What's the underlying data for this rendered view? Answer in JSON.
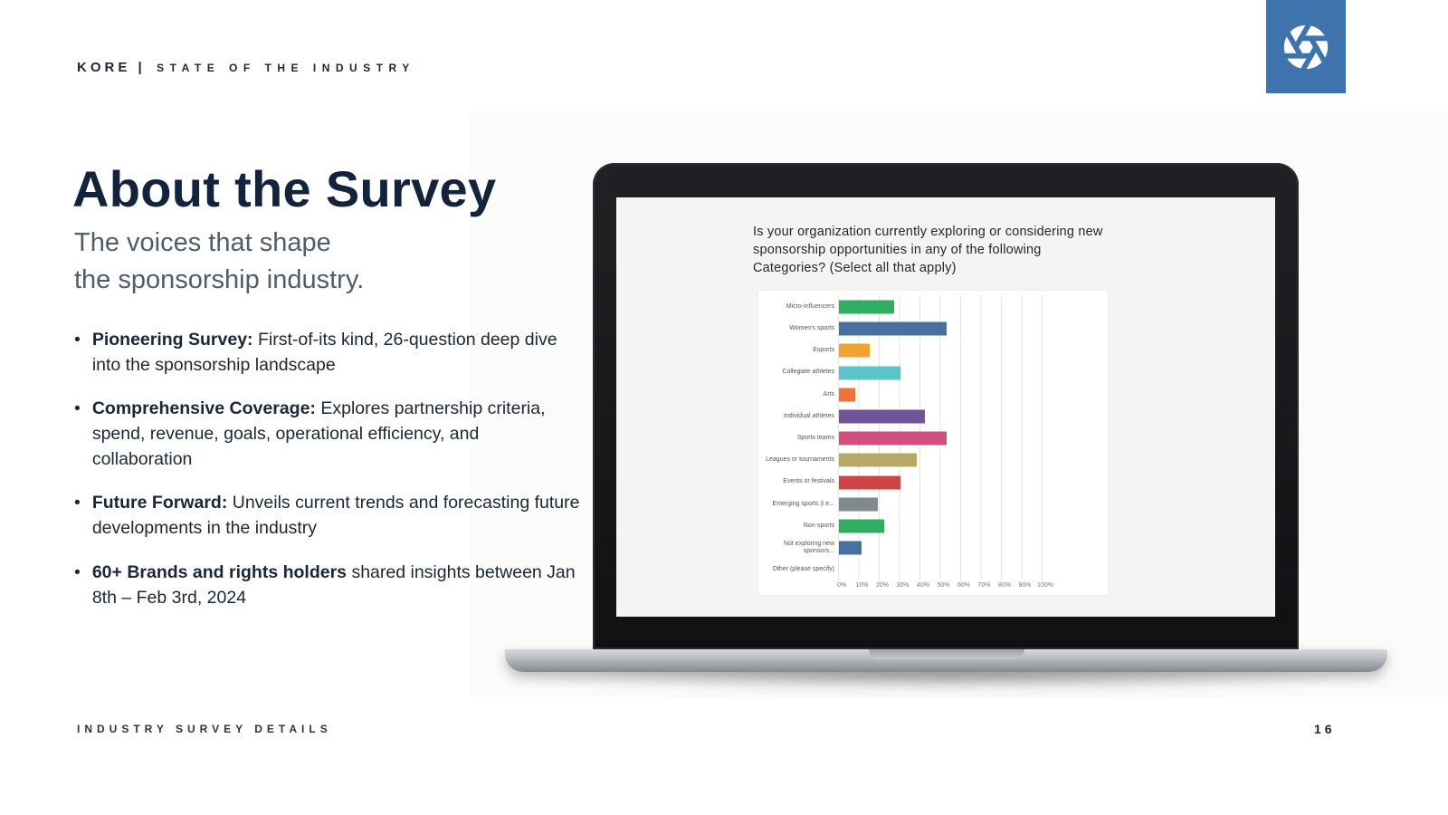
{
  "header": {
    "brand": "KORE |",
    "brand_suffix": "STATE OF THE INDUSTRY",
    "logo_icon": "aperture-shutter-icon",
    "logo_color": "#3e74ad"
  },
  "title": "About the Survey",
  "subtitle_line1": "The voices that shape",
  "subtitle_line2": "the sponsorship industry.",
  "bullets": [
    {
      "bold": "Pioneering Survey:",
      "text": "First-of-its kind, 26-question deep dive into the sponsorship landscape"
    },
    {
      "bold": "Comprehensive Coverage:",
      "text": "Explores partnership criteria, spend, revenue, goals, operational efficiency, and collaboration"
    },
    {
      "bold": "Future Forward:",
      "text": "Unveils current trends and forecasting future developments in the industry"
    },
    {
      "bold": "60+ Brands and rights holders",
      "text": "shared insights between Jan 8th – Feb 3rd, 2024"
    }
  ],
  "laptop_screen": {
    "question": "Is your organization currently exploring or considering new sponsorship opportunities in any of the following Categories? (Select all that apply)"
  },
  "chart_data": {
    "type": "bar",
    "orientation": "horizontal",
    "title": "Is your organization currently exploring or considering new sponsorship opportunities in any of the following Categories? (Select all that apply)",
    "categories": [
      "Micro-influencers",
      "Women's sports",
      "Esports",
      "Collegiate athletes",
      "Arts",
      "Individual athletes",
      "Sports teams",
      "Leagues or tournaments",
      "Events or festivals",
      "Emerging sports (i.e...",
      "Non-sports",
      "Not exploring new sponsors...",
      "Other (please specify)"
    ],
    "values": [
      27,
      53,
      15,
      30,
      8,
      42,
      53,
      38,
      30,
      19,
      22,
      11,
      0
    ],
    "colors": [
      "#2fae63",
      "#44719f",
      "#f0a32e",
      "#5cc3c6",
      "#f0703c",
      "#6f5597",
      "#d25080",
      "#b8a765",
      "#cf4444",
      "#80898d",
      "#2fae63",
      "#44719f",
      "#cccccc"
    ],
    "x_tick_labels": [
      "0%",
      "10%",
      "20%",
      "30%",
      "40%",
      "50%",
      "60%",
      "70%",
      "80%",
      "90%",
      "100%"
    ],
    "xlim": [
      0,
      100
    ],
    "grid": true,
    "legend": false
  },
  "footer": {
    "left": "INDUSTRY SURVEY DETAILS",
    "page": "16"
  },
  "colors": {
    "accent_navy": "#14233c",
    "logo_blue": "#3e74ad"
  }
}
